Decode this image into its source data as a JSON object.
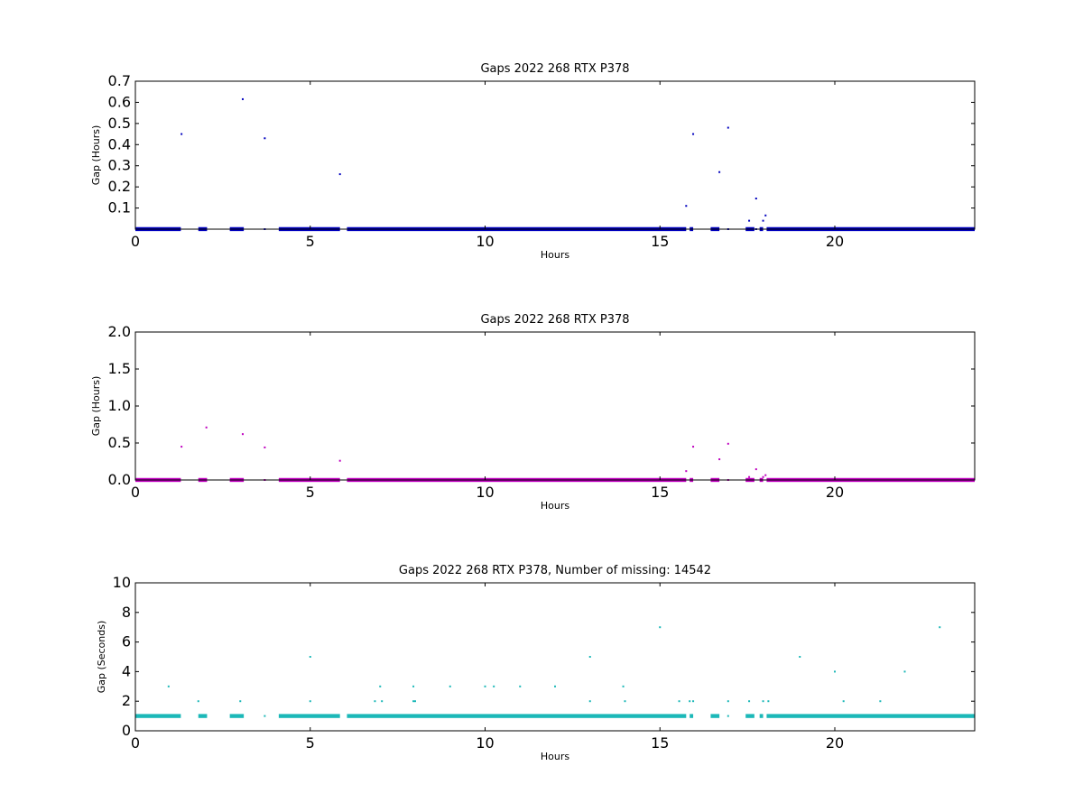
{
  "chart_data": [
    {
      "type": "scatter",
      "title": "Gaps 2022 268 RTX  P378",
      "xlabel": "Hours",
      "ylabel": "Gap (Hours)",
      "xlim": [
        0,
        24
      ],
      "ylim": [
        0,
        0.7
      ],
      "xticks": [
        0,
        5,
        10,
        15,
        20
      ],
      "yticks": [
        0.1,
        0.2,
        0.3,
        0.4,
        0.5,
        0.6,
        0.7
      ],
      "tick_decimals": 1,
      "grid": false,
      "color": "#0000bf",
      "baseline_value": 0.0003,
      "baseline_segments": [
        [
          0,
          1.3
        ],
        [
          1.8,
          2.05
        ],
        [
          2.7,
          3.1
        ],
        [
          4.1,
          5.85
        ],
        [
          6.05,
          15.75
        ],
        [
          15.85,
          15.95
        ],
        [
          16.45,
          16.7
        ],
        [
          17.45,
          17.7
        ],
        [
          17.85,
          17.95
        ],
        [
          18.05,
          24
        ]
      ],
      "points": [
        {
          "x": 1.32,
          "y": 0.45
        },
        {
          "x": 3.07,
          "y": 0.615
        },
        {
          "x": 3.7,
          "y": 0.43
        },
        {
          "x": 5.85,
          "y": 0.26
        },
        {
          "x": 15.75,
          "y": 0.11
        },
        {
          "x": 15.95,
          "y": 0.45
        },
        {
          "x": 16.7,
          "y": 0.27
        },
        {
          "x": 16.95,
          "y": 0.48
        },
        {
          "x": 17.55,
          "y": 0.04
        },
        {
          "x": 17.75,
          "y": 0.145
        },
        {
          "x": 17.95,
          "y": 0.04
        },
        {
          "x": 18.02,
          "y": 0.065
        },
        {
          "x": 3.7,
          "y": 0.0
        },
        {
          "x": 16.95,
          "y": 0.0
        },
        {
          "x": 17.75,
          "y": 0.0
        }
      ]
    },
    {
      "type": "scatter",
      "title": "Gaps 2022 268 RTX  P378",
      "xlabel": "Hours",
      "ylabel": "Gap (Hours)",
      "xlim": [
        0,
        24
      ],
      "ylim": [
        0,
        2.0
      ],
      "xticks": [
        0,
        5,
        10,
        15,
        20
      ],
      "yticks": [
        0.0,
        0.5,
        1.0,
        1.5,
        2.0
      ],
      "tick_decimals": 1,
      "grid": false,
      "color": "#bf00bf",
      "baseline_value": 0.0003,
      "baseline_segments": [
        [
          0,
          1.3
        ],
        [
          1.8,
          2.05
        ],
        [
          2.7,
          3.1
        ],
        [
          4.1,
          5.85
        ],
        [
          6.05,
          15.75
        ],
        [
          15.85,
          15.95
        ],
        [
          16.45,
          16.7
        ],
        [
          17.45,
          17.7
        ],
        [
          17.85,
          17.95
        ],
        [
          18.05,
          24
        ]
      ],
      "points": [
        {
          "x": 1.32,
          "y": 0.45
        },
        {
          "x": 2.03,
          "y": 0.71
        },
        {
          "x": 3.07,
          "y": 0.62
        },
        {
          "x": 3.7,
          "y": 0.44
        },
        {
          "x": 5.85,
          "y": 0.26
        },
        {
          "x": 15.75,
          "y": 0.12
        },
        {
          "x": 15.95,
          "y": 0.45
        },
        {
          "x": 16.7,
          "y": 0.28
        },
        {
          "x": 16.95,
          "y": 0.49
        },
        {
          "x": 17.55,
          "y": 0.04
        },
        {
          "x": 17.75,
          "y": 0.145
        },
        {
          "x": 17.95,
          "y": 0.04
        },
        {
          "x": 18.02,
          "y": 0.065
        },
        {
          "x": 3.7,
          "y": 0.0
        },
        {
          "x": 16.95,
          "y": 0.0
        }
      ]
    },
    {
      "type": "scatter",
      "title": "Gaps 2022 268 RTX  P378, Number of missing: 14542",
      "xlabel": "Hours",
      "ylabel": "Gap (Seconds)",
      "xlim": [
        0,
        24
      ],
      "ylim": [
        0,
        10
      ],
      "xticks": [
        0,
        5,
        10,
        15,
        20
      ],
      "yticks": [
        0,
        2,
        4,
        6,
        8,
        10
      ],
      "tick_decimals": 0,
      "grid": false,
      "color": "#1cb8b8",
      "baseline_value": 1,
      "baseline_segments": [
        [
          0,
          1.3
        ],
        [
          1.8,
          2.05
        ],
        [
          2.7,
          3.1
        ],
        [
          4.1,
          5.85
        ],
        [
          6.05,
          15.75
        ],
        [
          15.85,
          15.95
        ],
        [
          16.45,
          16.7
        ],
        [
          17.45,
          17.7
        ],
        [
          17.85,
          17.95
        ],
        [
          18.05,
          24
        ]
      ],
      "points": [
        {
          "x": 0.95,
          "y": 3
        },
        {
          "x": 1.8,
          "y": 2
        },
        {
          "x": 3.0,
          "y": 2
        },
        {
          "x": 3.7,
          "y": 1
        },
        {
          "x": 5.0,
          "y": 5
        },
        {
          "x": 5.0,
          "y": 2
        },
        {
          "x": 6.85,
          "y": 2
        },
        {
          "x": 7.0,
          "y": 3
        },
        {
          "x": 7.05,
          "y": 2
        },
        {
          "x": 7.95,
          "y": 3
        },
        {
          "x": 7.95,
          "y": 2
        },
        {
          "x": 8.0,
          "y": 2
        },
        {
          "x": 9.0,
          "y": 3
        },
        {
          "x": 10.0,
          "y": 3
        },
        {
          "x": 10.25,
          "y": 3
        },
        {
          "x": 11.0,
          "y": 3
        },
        {
          "x": 12.0,
          "y": 3
        },
        {
          "x": 13.0,
          "y": 5
        },
        {
          "x": 13.0,
          "y": 2
        },
        {
          "x": 13.95,
          "y": 3
        },
        {
          "x": 14.0,
          "y": 2
        },
        {
          "x": 15.0,
          "y": 7
        },
        {
          "x": 15.55,
          "y": 2
        },
        {
          "x": 15.85,
          "y": 2
        },
        {
          "x": 15.95,
          "y": 2
        },
        {
          "x": 16.95,
          "y": 2
        },
        {
          "x": 16.95,
          "y": 1
        },
        {
          "x": 17.55,
          "y": 2
        },
        {
          "x": 17.95,
          "y": 2
        },
        {
          "x": 18.1,
          "y": 2
        },
        {
          "x": 19.0,
          "y": 5
        },
        {
          "x": 20.0,
          "y": 4
        },
        {
          "x": 20.25,
          "y": 2
        },
        {
          "x": 21.3,
          "y": 2
        },
        {
          "x": 22.0,
          "y": 4
        },
        {
          "x": 23.0,
          "y": 7
        }
      ]
    }
  ]
}
